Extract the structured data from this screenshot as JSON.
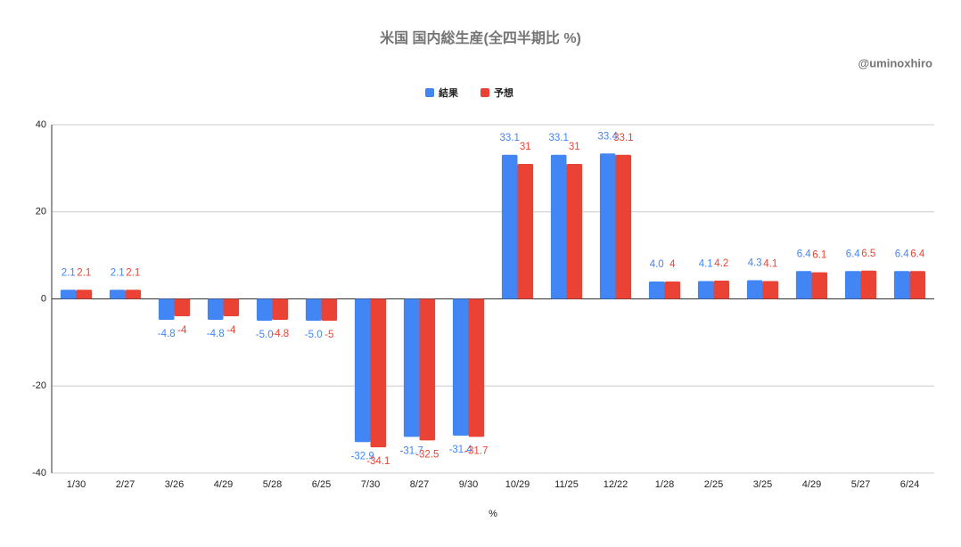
{
  "chart_data": {
    "type": "bar",
    "title": "米国 国内総生産(全四半期比 %)",
    "annotation": "@uminoxhiro",
    "x_label": "%",
    "categories": [
      "1/30",
      "2/27",
      "3/26",
      "4/29",
      "5/28",
      "6/25",
      "7/30",
      "8/27",
      "9/30",
      "10/29",
      "11/25",
      "12/22",
      "1/28",
      "2/25",
      "3/25",
      "4/29",
      "5/27",
      "6/24"
    ],
    "series": [
      {
        "name": "結果",
        "color": "#4285f4",
        "values": [
          2.1,
          2.1,
          -4.8,
          -4.8,
          -5.0,
          -5.0,
          -32.9,
          -31.7,
          -31.4,
          33.1,
          33.1,
          33.4,
          4.0,
          4.1,
          4.3,
          6.4,
          6.4,
          6.4
        ],
        "value_labels": [
          "2.1",
          "2.1",
          "-4.8",
          "-4.8",
          "-5.0",
          "-5.0",
          "-32.9",
          "-31.7",
          "-31.4",
          "33.1",
          "33.1",
          "33.4",
          "4.0",
          "4.1",
          "4.3",
          "6.4",
          "6.4",
          "6.4"
        ]
      },
      {
        "name": "予想",
        "color": "#ea4335",
        "values": [
          2.1,
          2.1,
          -4,
          -4,
          -4.8,
          -5,
          -34.1,
          -32.5,
          -31.7,
          31,
          31,
          33.1,
          4,
          4.2,
          4.1,
          6.1,
          6.5,
          6.4
        ]
      }
    ],
    "ylim": [
      -40,
      40
    ],
    "yticks": [
      -40,
      -20,
      0,
      20,
      40
    ],
    "grid": true,
    "legend": "top"
  }
}
